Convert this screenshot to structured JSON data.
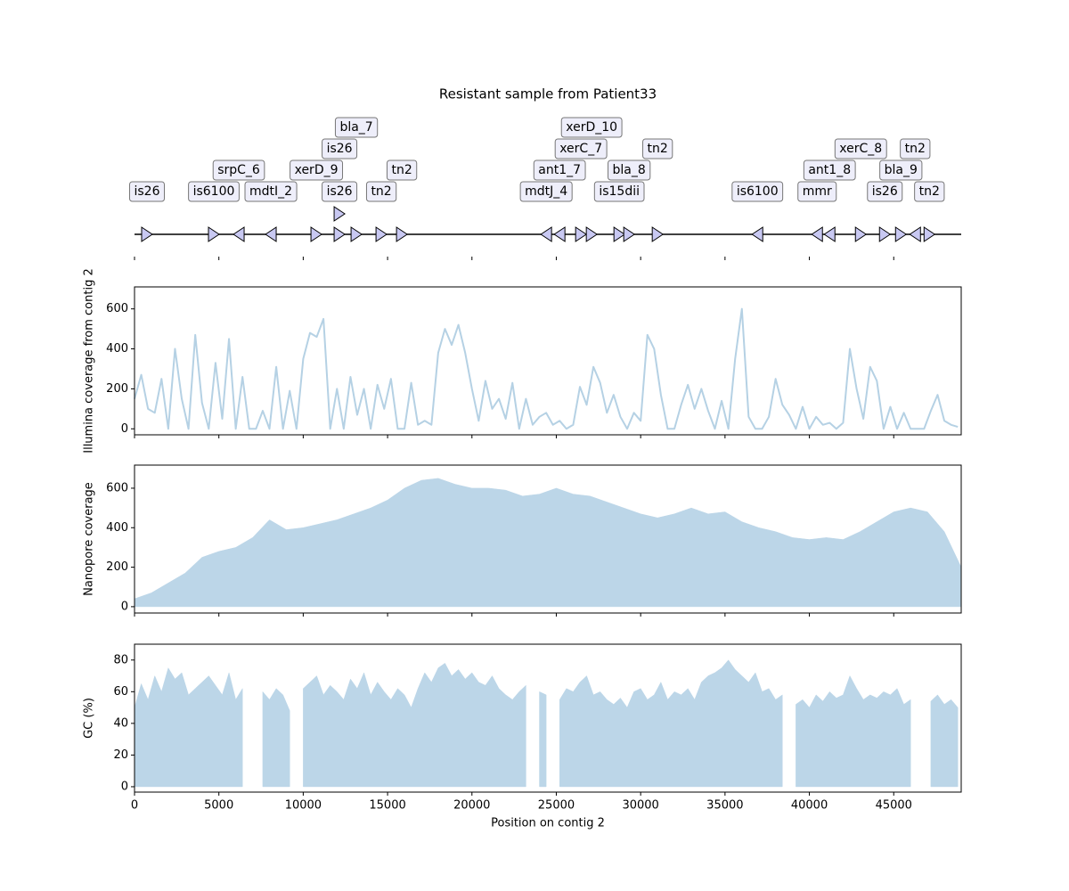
{
  "chart_data": [
    {
      "type": "gene-map",
      "title": "Resistant sample from Patient33",
      "xlim": [
        0,
        49000
      ],
      "color": "#c8c8f2",
      "label_color": "#eeeefa",
      "genes": [
        {
          "label": "is26",
          "position": 739,
          "strand": "+"
        },
        {
          "label": "is6100",
          "position": 4700,
          "strand": "+"
        },
        {
          "label": "srpC_6",
          "position": 6180,
          "strand": "-"
        },
        {
          "label": "mdtI_2",
          "position": 8081,
          "strand": "-"
        },
        {
          "label": "xerD_9",
          "position": 10775,
          "strand": "+"
        },
        {
          "label": "is26",
          "position": 12148,
          "strand": "+"
        },
        {
          "label": "is26",
          "position": 12148,
          "strand": "+"
        },
        {
          "label": "bla_7",
          "position": 13152,
          "strand": "+"
        },
        {
          "label": "tn2",
          "position": 14631,
          "strand": "+"
        },
        {
          "label": "tn2",
          "position": 15846,
          "strand": "+"
        },
        {
          "label": "mdtJ_4",
          "position": 24402,
          "strand": "-"
        },
        {
          "label": "ant1_7",
          "position": 25195,
          "strand": "-"
        },
        {
          "label": "xerC_7",
          "position": 26462,
          "strand": "+"
        },
        {
          "label": "xerD_10",
          "position": 27096,
          "strand": "+"
        },
        {
          "label": "is15dii",
          "position": 28733,
          "strand": "+"
        },
        {
          "label": "bla_8",
          "position": 29314,
          "strand": "+"
        },
        {
          "label": "tn2",
          "position": 31004,
          "strand": "+"
        },
        {
          "label": "is6100",
          "position": 36920,
          "strand": "-"
        },
        {
          "label": "mmr",
          "position": 40459,
          "strand": "-"
        },
        {
          "label": "ant1_8",
          "position": 41198,
          "strand": "-"
        },
        {
          "label": "xerC_8",
          "position": 43047,
          "strand": "+"
        },
        {
          "label": "is26",
          "position": 44473,
          "strand": "+"
        },
        {
          "label": "bla_9",
          "position": 45424,
          "strand": "+"
        },
        {
          "label": "tn2",
          "position": 46269,
          "strand": "-"
        },
        {
          "label": "tn2",
          "position": 47114,
          "strand": "+"
        }
      ]
    },
    {
      "type": "line",
      "ylabel": "Illumina coverage from contig 2",
      "color": "#b5d1e4",
      "xlim": [
        0,
        49000
      ],
      "ylim": [
        -30,
        710
      ],
      "yticks": [
        0,
        200,
        400,
        600
      ],
      "x": [
        0,
        400,
        800,
        1200,
        1600,
        2000,
        2400,
        2800,
        3200,
        3600,
        4000,
        4400,
        4800,
        5200,
        5600,
        6000,
        6400,
        6800,
        7200,
        7600,
        8000,
        8400,
        8800,
        9200,
        9600,
        10000,
        10400,
        10800,
        11200,
        11600,
        12000,
        12400,
        12800,
        13200,
        13600,
        14000,
        14400,
        14800,
        15200,
        15600,
        16000,
        16400,
        16800,
        17200,
        17600,
        18000,
        18400,
        18800,
        19200,
        19600,
        20000,
        20400,
        20800,
        21200,
        21600,
        22000,
        22400,
        22800,
        23200,
        23600,
        24000,
        24400,
        24800,
        25200,
        25600,
        26000,
        26400,
        26800,
        27200,
        27600,
        28000,
        28400,
        28800,
        29200,
        29600,
        30000,
        30400,
        30800,
        31200,
        31600,
        32000,
        32400,
        32800,
        33200,
        33600,
        34000,
        34400,
        34800,
        35200,
        35600,
        36000,
        36400,
        36800,
        37200,
        37600,
        38000,
        38400,
        38800,
        39200,
        39600,
        40000,
        40400,
        40800,
        41200,
        41600,
        42000,
        42400,
        42800,
        43200,
        43600,
        44000,
        44400,
        44800,
        45200,
        45600,
        46000,
        46400,
        46800,
        47200,
        47600,
        48000,
        48400,
        48800
      ],
      "values": [
        150,
        270,
        100,
        80,
        250,
        0,
        400,
        150,
        0,
        470,
        130,
        0,
        330,
        50,
        450,
        0,
        260,
        0,
        0,
        90,
        0,
        310,
        0,
        190,
        0,
        350,
        480,
        460,
        550,
        0,
        200,
        0,
        260,
        70,
        200,
        0,
        220,
        100,
        250,
        0,
        0,
        230,
        20,
        40,
        20,
        380,
        500,
        420,
        520,
        380,
        200,
        40,
        240,
        100,
        150,
        50,
        230,
        0,
        150,
        20,
        60,
        80,
        20,
        40,
        0,
        20,
        210,
        120,
        310,
        230,
        80,
        170,
        60,
        0,
        80,
        40,
        470,
        400,
        170,
        0,
        0,
        120,
        220,
        100,
        200,
        90,
        0,
        140,
        0,
        350,
        600,
        60,
        0,
        0,
        60,
        250,
        120,
        70,
        0,
        110,
        0,
        60,
        20,
        30,
        0,
        30,
        400,
        200,
        50,
        310,
        240,
        0,
        110,
        0,
        80,
        0,
        0,
        0,
        90,
        170,
        40,
        20,
        10
      ]
    },
    {
      "type": "area",
      "ylabel": "Nanopore coverage",
      "color": "#bcd6e8",
      "xlim": [
        0,
        49000
      ],
      "ylim": [
        -32,
        717
      ],
      "yticks": [
        0,
        200,
        400,
        600
      ],
      "x": [
        0,
        1000,
        2000,
        3000,
        4000,
        5000,
        6000,
        7000,
        8000,
        9000,
        10000,
        11000,
        12000,
        13000,
        14000,
        15000,
        16000,
        17000,
        18000,
        19000,
        20000,
        21000,
        22000,
        23000,
        24000,
        25000,
        26000,
        27000,
        28000,
        29000,
        30000,
        31000,
        32000,
        33000,
        34000,
        35000,
        36000,
        37000,
        38000,
        39000,
        40000,
        41000,
        42000,
        43000,
        44000,
        45000,
        46000,
        47000,
        48000,
        49000
      ],
      "values": [
        40,
        70,
        120,
        170,
        250,
        280,
        300,
        350,
        440,
        390,
        400,
        420,
        440,
        470,
        500,
        540,
        600,
        640,
        650,
        620,
        600,
        600,
        590,
        560,
        570,
        600,
        570,
        560,
        530,
        500,
        470,
        450,
        470,
        500,
        470,
        480,
        430,
        400,
        380,
        350,
        340,
        350,
        340,
        380,
        430,
        480,
        500,
        480,
        380,
        200
      ]
    },
    {
      "type": "area",
      "ylabel": "GC (%)",
      "xlabel": "Position on contig 2",
      "color": "#bcd6e8",
      "xlim": [
        0,
        49000
      ],
      "ylim": [
        -3.4,
        90
      ],
      "yticks": [
        0,
        20,
        40,
        60,
        80
      ],
      "xticks": [
        0,
        5000,
        10000,
        15000,
        20000,
        25000,
        30000,
        35000,
        40000,
        45000
      ],
      "x": [
        0,
        400,
        800,
        1200,
        1600,
        2000,
        2400,
        2800,
        3200,
        3600,
        4000,
        4400,
        4800,
        5200,
        5600,
        6000,
        6400,
        6800,
        7200,
        7600,
        8000,
        8400,
        8800,
        9200,
        9600,
        10000,
        10400,
        10800,
        11200,
        11600,
        12000,
        12400,
        12800,
        13200,
        13600,
        14000,
        14400,
        14800,
        15200,
        15600,
        16000,
        16400,
        16800,
        17200,
        17600,
        18000,
        18400,
        18800,
        19200,
        19600,
        20000,
        20400,
        20800,
        21200,
        21600,
        22000,
        22400,
        22800,
        23200,
        23600,
        24000,
        24400,
        24800,
        25200,
        25600,
        26000,
        26400,
        26800,
        27200,
        27600,
        28000,
        28400,
        28800,
        29200,
        29600,
        30000,
        30400,
        30800,
        31200,
        31600,
        32000,
        32400,
        32800,
        33200,
        33600,
        34000,
        34400,
        34800,
        35200,
        35600,
        36000,
        36400,
        36800,
        37200,
        37600,
        38000,
        38400,
        38800,
        39200,
        39600,
        40000,
        40400,
        40800,
        41200,
        41600,
        42000,
        42400,
        42800,
        43200,
        43600,
        44000,
        44400,
        44800,
        45200,
        45600,
        46000,
        46400,
        46800,
        47200,
        47600,
        48000,
        48400,
        48800
      ],
      "values": [
        50,
        65,
        55,
        70,
        60,
        75,
        68,
        72,
        58,
        62,
        66,
        70,
        64,
        58,
        72,
        55,
        62,
        null,
        null,
        60,
        55,
        62,
        58,
        48,
        null,
        62,
        66,
        70,
        58,
        64,
        60,
        55,
        68,
        62,
        72,
        58,
        66,
        60,
        55,
        62,
        58,
        50,
        62,
        72,
        66,
        75,
        78,
        70,
        74,
        68,
        72,
        66,
        64,
        70,
        62,
        58,
        55,
        60,
        64,
        null,
        60,
        58,
        null,
        55,
        62,
        60,
        66,
        70,
        58,
        60,
        55,
        52,
        56,
        50,
        60,
        62,
        55,
        58,
        66,
        55,
        60,
        58,
        62,
        55,
        66,
        70,
        72,
        75,
        80,
        74,
        70,
        66,
        72,
        60,
        62,
        55,
        58,
        null,
        52,
        55,
        50,
        58,
        54,
        60,
        56,
        58,
        70,
        62,
        55,
        58,
        56,
        60,
        58,
        62,
        52,
        55,
        null,
        null,
        54,
        58,
        52,
        55,
        50
      ]
    }
  ]
}
